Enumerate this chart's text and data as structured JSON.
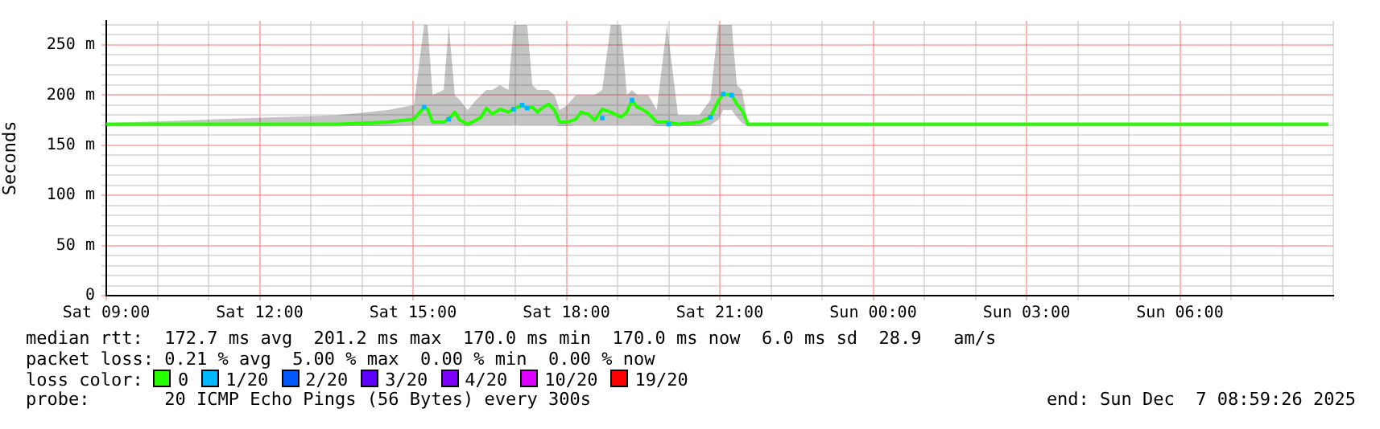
{
  "chart_data": {
    "type": "line",
    "ylabel": "Seconds",
    "xlim": [
      "2025-12-06T09:00",
      "2025-12-07T09:00"
    ],
    "xticks": [
      {
        "value": "2025-12-06T09:00",
        "label": "Sat 09:00"
      },
      {
        "value": "2025-12-06T10:00",
        "label": null
      },
      {
        "value": "2025-12-06T11:00",
        "label": null
      },
      {
        "value": "2025-12-06T12:00",
        "label": "Sat 12:00"
      },
      {
        "value": "2025-12-06T13:00",
        "label": null
      },
      {
        "value": "2025-12-06T14:00",
        "label": null
      },
      {
        "value": "2025-12-06T15:00",
        "label": "Sat 15:00"
      },
      {
        "value": "2025-12-06T16:00",
        "label": null
      },
      {
        "value": "2025-12-06T17:00",
        "label": null
      },
      {
        "value": "2025-12-06T18:00",
        "label": "Sat 18:00"
      },
      {
        "value": "2025-12-06T19:00",
        "label": null
      },
      {
        "value": "2025-12-06T20:00",
        "label": null
      },
      {
        "value": "2025-12-06T21:00",
        "label": "Sat 21:00"
      },
      {
        "value": "2025-12-06T22:00",
        "label": null
      },
      {
        "value": "2025-12-06T23:00",
        "label": null
      },
      {
        "value": "2025-12-07T00:00",
        "label": "Sun 00:00"
      },
      {
        "value": "2025-12-07T01:00",
        "label": null
      },
      {
        "value": "2025-12-07T02:00",
        "label": null
      },
      {
        "value": "2025-12-07T03:00",
        "label": "Sun 03:00"
      },
      {
        "value": "2025-12-07T04:00",
        "label": null
      },
      {
        "value": "2025-12-07T05:00",
        "label": null
      },
      {
        "value": "2025-12-07T06:00",
        "label": "Sun 06:00"
      },
      {
        "value": "2025-12-07T07:00",
        "label": null
      },
      {
        "value": "2025-12-07T08:00",
        "label": null
      },
      {
        "value": "2025-12-07T09:00",
        "label": null
      }
    ],
    "ylim": [
      0,
      274
    ],
    "yticks": [
      0,
      {
        "value": 10,
        "label": null
      },
      {
        "value": 20,
        "label": null
      },
      {
        "value": 30,
        "label": null
      },
      {
        "value": 40,
        "label": null
      },
      {
        "value": 50,
        "label": "50 m"
      },
      {
        "value": 60,
        "label": null
      },
      {
        "value": 70,
        "label": null
      },
      {
        "value": 80,
        "label": null
      },
      {
        "value": 90,
        "label": null
      },
      {
        "value": 100,
        "label": "100 m"
      },
      {
        "value": 110,
        "label": null
      },
      {
        "value": 120,
        "label": null
      },
      {
        "value": 130,
        "label": null
      },
      {
        "value": 140,
        "label": null
      },
      {
        "value": 150,
        "label": "150 m"
      },
      {
        "value": 160,
        "label": null
      },
      {
        "value": 170,
        "label": null
      },
      {
        "value": 180,
        "label": null
      },
      {
        "value": 190,
        "label": null
      },
      {
        "value": 200,
        "label": "200 m"
      },
      {
        "value": 210,
        "label": null
      },
      {
        "value": 220,
        "label": null
      },
      {
        "value": 230,
        "label": null
      },
      {
        "value": 240,
        "label": null
      },
      {
        "value": 250,
        "label": "250 m"
      },
      {
        "value": 260,
        "label": null
      },
      {
        "value": 270,
        "label": null
      }
    ],
    "grid": true,
    "legend": "bottom",
    "legend_title": "loss color:",
    "series": [
      {
        "name": "0",
        "color": "#26ff00",
        "marker": "none",
        "x": [
          "2025-12-06T09:00",
          "2025-12-06T13:33",
          "2025-12-06T14:30",
          "2025-12-06T15:01",
          "2025-12-06T15:13",
          "2025-12-06T15:17",
          "2025-12-06T15:23",
          "2025-12-06T15:36",
          "2025-12-06T15:42",
          "2025-12-06T15:49",
          "2025-12-06T15:55",
          "2025-12-06T16:04",
          "2025-12-06T16:14",
          "2025-12-06T16:20",
          "2025-12-06T16:26",
          "2025-12-06T16:33",
          "2025-12-06T16:42",
          "2025-12-06T16:52",
          "2025-12-06T16:58",
          "2025-12-06T17:08",
          "2025-12-06T17:14",
          "2025-12-06T17:20",
          "2025-12-06T17:26",
          "2025-12-06T17:33",
          "2025-12-06T17:39",
          "2025-12-06T17:46",
          "2025-12-06T17:52",
          "2025-12-06T18:01",
          "2025-12-06T18:11",
          "2025-12-06T18:17",
          "2025-12-06T18:26",
          "2025-12-06T18:33",
          "2025-12-06T18:42",
          "2025-12-06T18:52",
          "2025-12-06T19:04",
          "2025-12-06T19:11",
          "2025-12-06T19:17",
          "2025-12-06T19:23",
          "2025-12-06T19:29",
          "2025-12-06T19:36",
          "2025-12-06T19:46",
          "2025-12-06T19:58",
          "2025-12-06T20:11",
          "2025-12-06T20:36",
          "2025-12-06T20:49",
          "2025-12-06T20:58",
          "2025-12-06T21:04",
          "2025-12-06T21:14",
          "2025-12-06T21:20",
          "2025-12-06T21:26",
          "2025-12-06T21:33",
          "2025-12-07T08:54"
        ],
        "values": [
          171,
          171,
          173,
          176,
          188,
          186,
          173,
          173,
          176,
          183,
          175,
          171,
          175,
          178,
          187,
          181,
          186,
          183,
          186,
          190,
          187,
          188,
          183,
          188,
          191,
          185,
          173,
          173,
          176,
          183,
          181,
          175,
          186,
          183,
          178,
          183,
          195,
          188,
          186,
          182,
          173,
          173,
          171,
          173,
          178,
          194,
          201,
          200,
          191,
          185,
          171,
          171
        ],
        "lower": [
          169,
          169,
          169,
          170,
          170,
          170,
          170,
          170,
          170,
          170,
          170,
          169,
          170,
          170,
          170,
          170,
          170,
          170,
          170,
          170,
          170,
          170,
          170,
          170,
          170,
          170,
          169,
          169,
          170,
          170,
          170,
          170,
          170,
          170,
          170,
          170,
          170,
          170,
          170,
          170,
          169,
          169,
          169,
          169,
          170,
          175,
          185,
          185,
          178,
          172,
          169,
          169
        ],
        "upper": [
          172,
          180,
          185,
          190,
          270,
          270,
          200,
          205,
          270,
          200,
          195,
          185,
          195,
          200,
          205,
          205,
          210,
          205,
          270,
          270,
          270,
          210,
          205,
          205,
          205,
          200,
          185,
          190,
          200,
          200,
          200,
          200,
          205,
          270,
          270,
          200,
          205,
          200,
          200,
          200,
          185,
          270,
          180,
          180,
          195,
          270,
          270,
          270,
          210,
          205,
          172,
          172
        ]
      },
      {
        "name": "1/20",
        "color": "#00b8ff",
        "type": "scatter",
        "marker": "square",
        "x": [
          "2025-12-06T15:13",
          "2025-12-06T15:42",
          "2025-12-06T16:58",
          "2025-12-06T17:08",
          "2025-12-06T17:14",
          "2025-12-06T18:42",
          "2025-12-06T19:17",
          "2025-12-06T20:00",
          "2025-12-06T20:49",
          "2025-12-06T21:04",
          "2025-12-06T21:14"
        ],
        "values": [
          188,
          176,
          186,
          190,
          187,
          177,
          195,
          171,
          178,
          201,
          200
        ]
      },
      {
        "name": "2/20",
        "color": "#0059ff",
        "type": "scatter",
        "marker": "square"
      },
      {
        "name": "3/20",
        "color": "#5e00ff",
        "type": "scatter",
        "marker": "square"
      },
      {
        "name": "4/20",
        "color": "#7e00ff",
        "type": "scatter",
        "marker": "square"
      },
      {
        "name": "10/20",
        "color": "#dd00ff",
        "type": "scatter",
        "marker": "square"
      },
      {
        "name": "19/20",
        "color": "#ff0000",
        "type": "scatter",
        "marker": "square"
      }
    ],
    "annotations": [
      "median rtt:  172.7 ms avg  201.2 ms max  170.0 ms min  170.0 ms now  6.0 ms sd  28.9   am/s",
      "packet loss: 0.21 % avg  5.00 % max  0.00 % min  0.00 % now",
      "probe:       20 ICMP Echo Pings (56 Bytes) every 300s",
      "end: Sun Dec  7 08:59:26 2025"
    ]
  }
}
